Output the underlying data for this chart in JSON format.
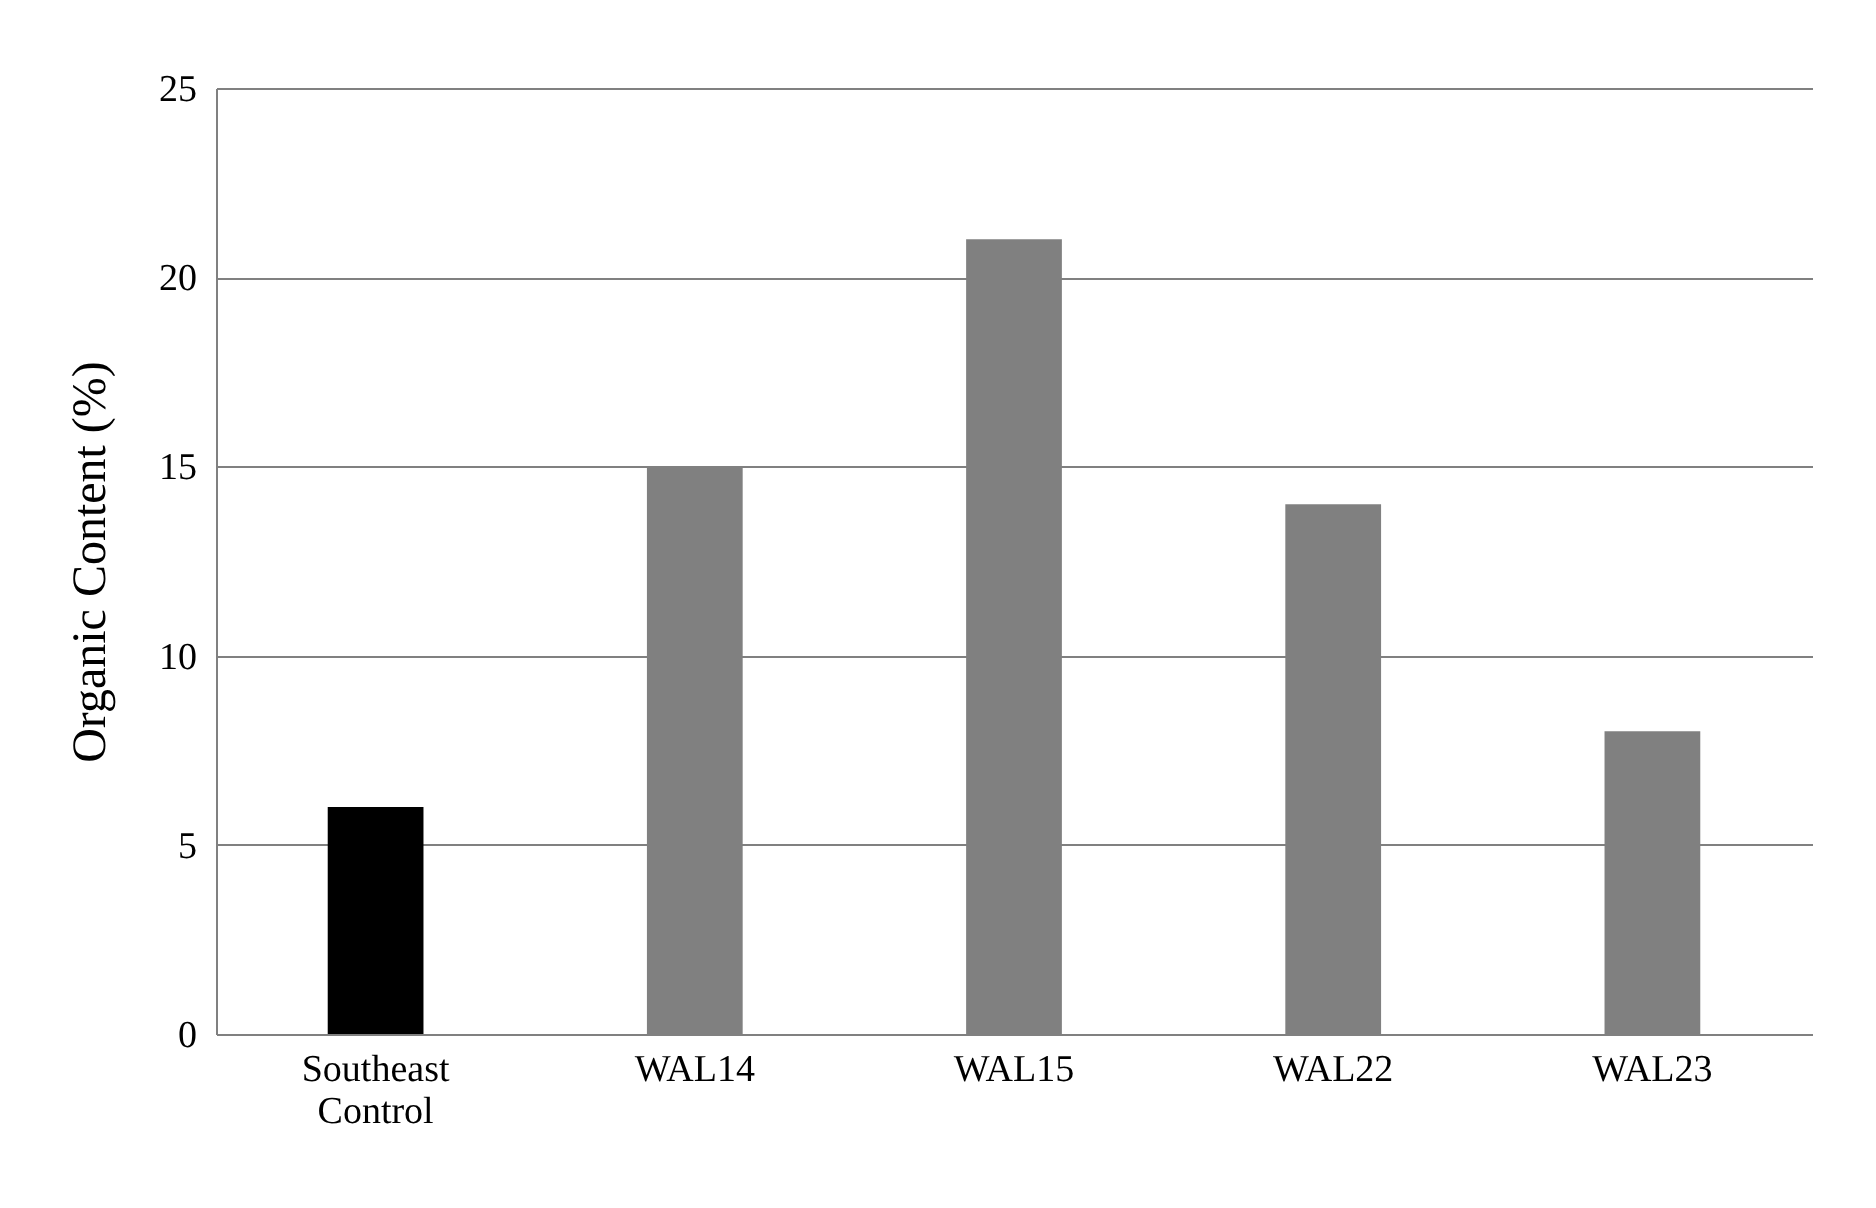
{
  "chart_data": {
    "type": "bar",
    "ylabel": "Organic Content (%)",
    "categories": [
      "Southeast Control",
      "WAL14",
      "WAL15",
      "WAL22",
      "WAL23"
    ],
    "values": [
      6,
      15,
      21,
      14,
      8
    ],
    "colors": [
      "#000000",
      "#808080",
      "#808080",
      "#808080",
      "#808080"
    ],
    "ylim": [
      0,
      25
    ],
    "yticks": [
      0,
      5,
      10,
      15,
      20,
      25
    ],
    "grid": "y"
  }
}
